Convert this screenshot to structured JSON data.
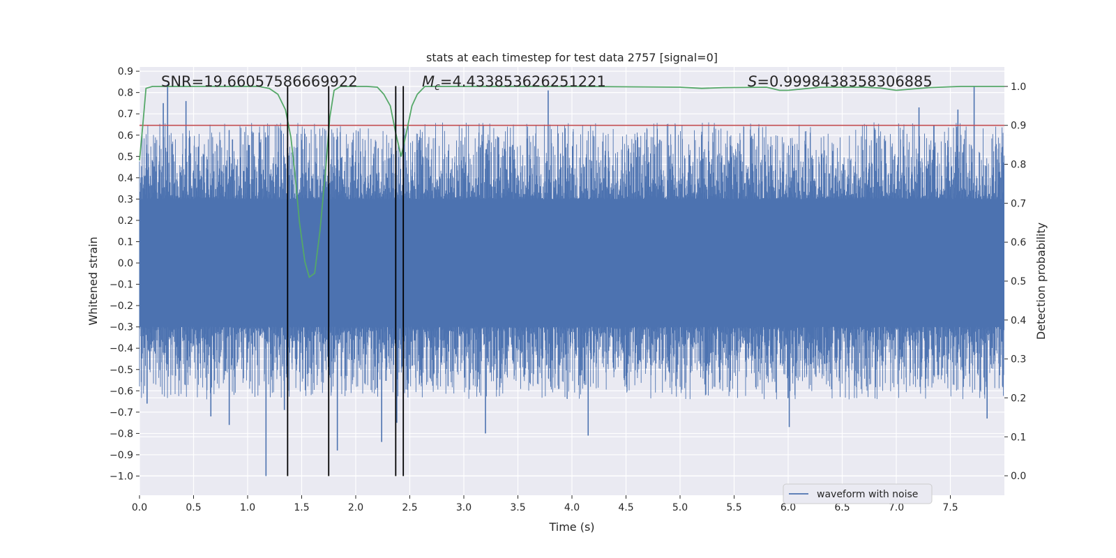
{
  "chart_data": {
    "type": "line",
    "title": "stats at each timestep for test data 2757 [signal=0]",
    "xlabel": "Time (s)",
    "ylabel": "Whitened strain",
    "y2label": "Detection probability",
    "xlim": [
      0.0,
      8.0
    ],
    "ylim": [
      -1.09,
      0.92
    ],
    "y2lim": [
      -0.05,
      1.05
    ],
    "xticks": [
      0.0,
      0.5,
      1.0,
      1.5,
      2.0,
      2.5,
      3.0,
      3.5,
      4.0,
      4.5,
      5.0,
      5.5,
      6.0,
      6.5,
      7.0,
      7.5
    ],
    "xtick_labels": [
      "0.0",
      "0.5",
      "1.0",
      "1.5",
      "2.0",
      "2.5",
      "3.0",
      "3.5",
      "4.0",
      "4.5",
      "5.0",
      "5.5",
      "6.0",
      "6.5",
      "7.0",
      "7.5"
    ],
    "yticks": [
      -1.0,
      -0.9,
      -0.8,
      -0.7,
      -0.6,
      -0.5,
      -0.4,
      -0.3,
      -0.2,
      -0.1,
      0.0,
      0.1,
      0.2,
      0.3,
      0.4,
      0.5,
      0.6,
      0.7,
      0.8,
      0.9
    ],
    "ytick_labels": [
      "−1.0",
      "−0.9",
      "−0.8",
      "−0.7",
      "−0.6",
      "−0.5",
      "−0.4",
      "−0.3",
      "−0.2",
      "−0.1",
      "0.0",
      "0.1",
      "0.2",
      "0.3",
      "0.4",
      "0.5",
      "0.6",
      "0.7",
      "0.8",
      "0.9"
    ],
    "y2ticks": [
      0.0,
      0.1,
      0.2,
      0.3,
      0.4,
      0.5,
      0.6,
      0.7,
      0.8,
      0.9,
      1.0
    ],
    "y2tick_labels": [
      "0.0",
      "0.1",
      "0.2",
      "0.3",
      "0.4",
      "0.5",
      "0.6",
      "0.7",
      "0.8",
      "0.9",
      "1.0"
    ],
    "grid": true,
    "legend_position": "bottom-right",
    "annotations": {
      "snr_prefix": "SNR=",
      "snr": "19.66057586669922",
      "mc_symbol": "M",
      "mc_subscript": "c",
      "mc_equals": "=",
      "mc": "4.433853626251221",
      "s_symbol": "S",
      "s_equals": "=",
      "s": "0.9998438358306885"
    },
    "series": [
      {
        "name": "waveform with noise",
        "kind": "waveform",
        "axis": "left",
        "color": "#4c72b0",
        "band_core": [
          -0.27,
          0.28
        ],
        "positive_peaks": [
          {
            "x": 0.22,
            "y": 0.75
          },
          {
            "x": 0.26,
            "y": 0.84
          },
          {
            "x": 0.43,
            "y": 0.76
          },
          {
            "x": 0.86,
            "y": 0.58
          },
          {
            "x": 1.17,
            "y": 0.59
          },
          {
            "x": 2.37,
            "y": 0.8
          },
          {
            "x": 3.78,
            "y": 0.81
          },
          {
            "x": 7.21,
            "y": 0.73
          },
          {
            "x": 7.57,
            "y": 0.72
          },
          {
            "x": 7.72,
            "y": 0.83
          }
        ],
        "negative_peaks": [
          {
            "x": 0.07,
            "y": -0.66
          },
          {
            "x": 0.66,
            "y": -0.72
          },
          {
            "x": 0.83,
            "y": -0.76
          },
          {
            "x": 1.17,
            "y": -1.0
          },
          {
            "x": 1.34,
            "y": -0.69
          },
          {
            "x": 1.83,
            "y": -0.88
          },
          {
            "x": 2.24,
            "y": -0.84
          },
          {
            "x": 2.38,
            "y": -0.75
          },
          {
            "x": 3.2,
            "y": -0.8
          },
          {
            "x": 4.15,
            "y": -0.81
          },
          {
            "x": 5.23,
            "y": -0.57
          },
          {
            "x": 6.01,
            "y": -0.77
          },
          {
            "x": 7.84,
            "y": -0.73
          }
        ]
      },
      {
        "name": "",
        "kind": "detection_probability",
        "axis": "right",
        "color": "#55a868",
        "x": [
          0.0,
          0.03,
          0.06,
          0.12,
          0.2,
          0.5,
          0.8,
          1.0,
          1.1,
          1.2,
          1.28,
          1.35,
          1.4,
          1.44,
          1.48,
          1.53,
          1.57,
          1.62,
          1.67,
          1.72,
          1.76,
          1.8,
          1.86,
          1.95,
          2.1,
          2.2,
          2.26,
          2.32,
          2.37,
          2.42,
          2.46,
          2.52,
          2.57,
          2.64,
          2.8,
          3.2,
          4.0,
          5.0,
          5.2,
          5.4,
          5.8,
          5.92,
          6.0,
          6.3,
          6.7,
          6.85,
          7.0,
          7.3,
          7.6,
          8.0
        ],
        "values": [
          0.81,
          0.9,
          0.995,
          1.0,
          1.0,
          1.0,
          1.0,
          1.0,
          1.0,
          0.995,
          0.98,
          0.94,
          0.87,
          0.77,
          0.65,
          0.55,
          0.51,
          0.52,
          0.63,
          0.78,
          0.92,
          0.99,
          1.0,
          1.0,
          1.0,
          0.998,
          0.98,
          0.95,
          0.88,
          0.82,
          0.87,
          0.95,
          0.98,
          1.0,
          1.0,
          1.0,
          1.0,
          0.998,
          0.995,
          0.997,
          0.998,
          0.99,
          0.99,
          0.998,
          0.998,
          0.996,
          0.99,
          0.997,
          1.0,
          1.0
        ]
      }
    ],
    "threshold_line": {
      "axis": "right",
      "value": 0.9,
      "color": "#c44e52"
    },
    "vertical_markers": {
      "x": [
        1.37,
        1.75,
        2.37,
        2.44
      ],
      "ymin": -1.0,
      "ymax": 0.83,
      "color": "#000000"
    }
  }
}
